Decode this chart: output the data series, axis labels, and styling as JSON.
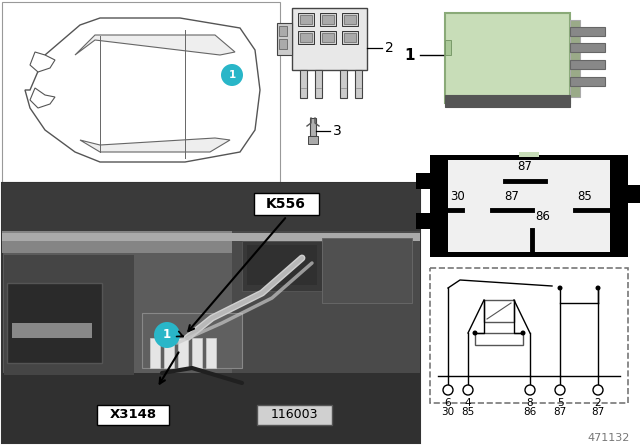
{
  "bg_color": "#ffffff",
  "part_number": "471132",
  "image_number": "116003",
  "relay_green": "#c8ddb8",
  "circle1_color": "#29b6c8",
  "pin_labels_bottom_row1": [
    "6",
    "4",
    "8",
    "5",
    "2"
  ],
  "pin_labels_bottom_row2": [
    "30",
    "85",
    "86",
    "87",
    "87"
  ],
  "k_label": "K556",
  "x_label": "X3148",
  "photo_colors": {
    "bg": "#5c5c5c",
    "rail": "#7a7a7a",
    "dark": "#3a3a3a",
    "med": "#666666",
    "light": "#909090",
    "very_dark": "#2a2a2a"
  }
}
